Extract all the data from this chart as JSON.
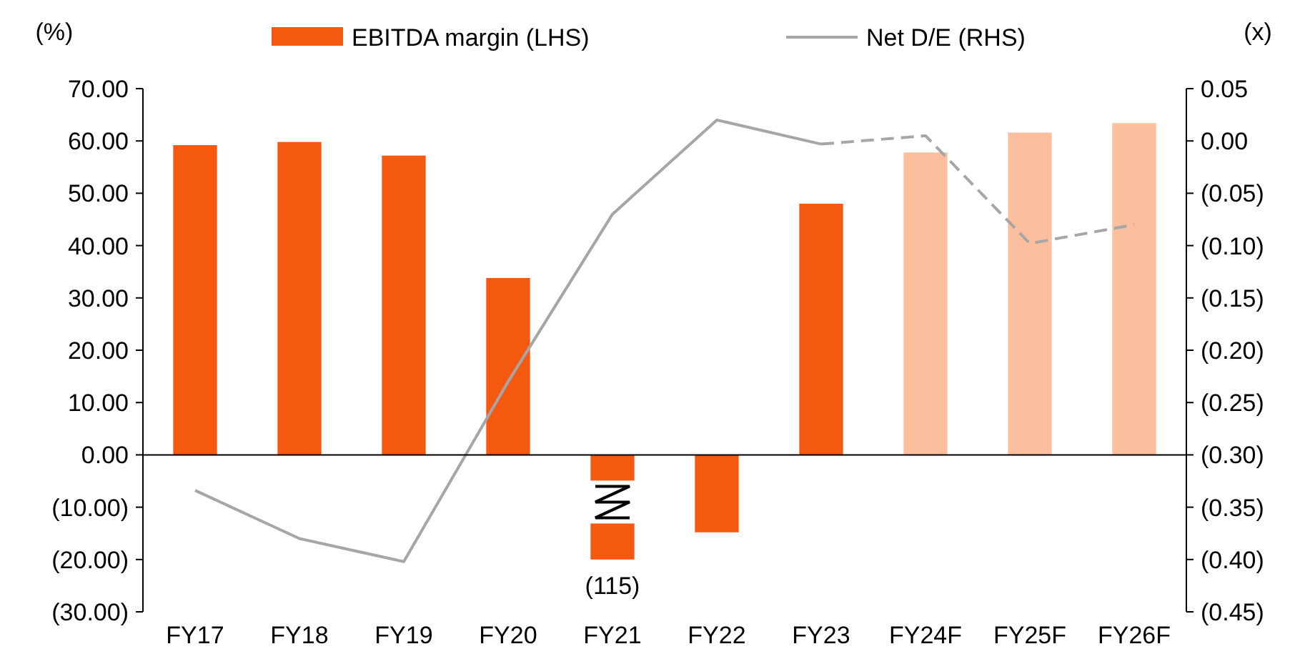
{
  "chart_data": {
    "type": "bar",
    "categories": [
      "FY17",
      "FY18",
      "FY19",
      "FY20",
      "FY21",
      "FY22",
      "FY23",
      "FY24F",
      "FY25F",
      "FY26F"
    ],
    "ylabel": "(%)",
    "y2label": "(x)",
    "series": [
      {
        "name": "EBITDA margin (LHS)",
        "color": "#f4590f",
        "colors": [
          "#f4590f",
          "#f4590f",
          "#f4590f",
          "#f4590f",
          "#f4590f",
          "#f4590f",
          "#f4590f",
          "#fbbf9e",
          "#fbbf9e",
          "#fbbf9e"
        ],
        "values": [
          59.2,
          59.8,
          57.2,
          33.8,
          -20,
          -14.8,
          48,
          57.8,
          61.6,
          63.4
        ]
      },
      {
        "name": "Net D/E (RHS)",
        "type": "line",
        "axis": "y2",
        "color": "#a6a6a6",
        "line_style": "solid",
        "values": [
          -0.334,
          -0.38,
          -0.402,
          -0.23,
          -0.07,
          0.02,
          -0.003,
          null,
          null,
          null
        ]
      },
      {
        "type": "line",
        "axis": "y2",
        "color": "#a6a6a6",
        "line_style": "dashed",
        "values": [
          null,
          null,
          null,
          null,
          null,
          null,
          -0.003,
          0.005,
          -0.098,
          -0.08
        ]
      }
    ],
    "ylim": [
      -30,
      70
    ],
    "yticks": [
      {
        "value": 70,
        "label": "70.00"
      },
      {
        "value": 60,
        "label": "60.00"
      },
      {
        "value": 50,
        "label": "50.00"
      },
      {
        "value": 40,
        "label": "40.00"
      },
      {
        "value": 30,
        "label": "30.00"
      },
      {
        "value": 20,
        "label": "20.00"
      },
      {
        "value": 10,
        "label": "10.00"
      },
      {
        "value": 0,
        "label": "0.00"
      },
      {
        "value": -10,
        "label": "(10.00)"
      },
      {
        "value": -20,
        "label": "(20.00)"
      },
      {
        "value": -30,
        "label": "(30.00)"
      }
    ],
    "y2lim": [
      -0.45,
      0.05
    ],
    "y2ticks": [
      {
        "value": 0.05,
        "label": "0.05"
      },
      {
        "value": 0,
        "label": "0.00"
      },
      {
        "value": -0.05,
        "label": "(0.05)"
      },
      {
        "value": -0.1,
        "label": "(0.10)"
      },
      {
        "value": -0.15,
        "label": "(0.15)"
      },
      {
        "value": -0.2,
        "label": "(0.20)"
      },
      {
        "value": -0.25,
        "label": "(0.25)"
      },
      {
        "value": -0.3,
        "label": "(0.30)"
      },
      {
        "value": -0.35,
        "label": "(0.35)"
      },
      {
        "value": -0.4,
        "label": "(0.40)"
      },
      {
        "value": -0.45,
        "label": "(0.45)"
      }
    ],
    "annotations": [
      {
        "text": "(115)",
        "x": "FY21",
        "y": -20
      }
    ],
    "marker": "none",
    "legend": "top"
  }
}
